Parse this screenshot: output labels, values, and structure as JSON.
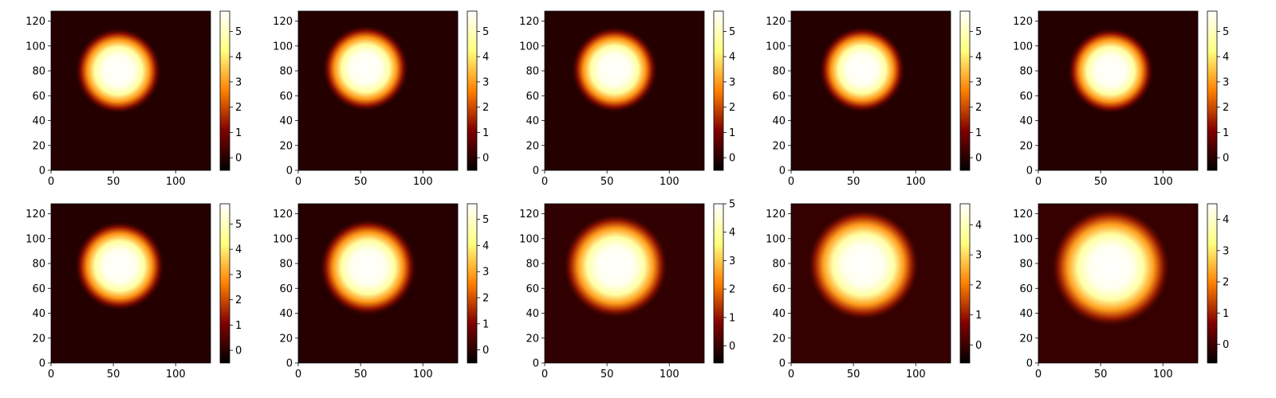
{
  "chart_data": [
    {
      "type": "heatmap",
      "colormap": "afmhot",
      "xlim": [
        0,
        128
      ],
      "ylim": [
        0,
        128
      ],
      "x_ticks": [
        "0",
        "50",
        "100"
      ],
      "y_ticks": [
        "0",
        "20",
        "40",
        "60",
        "80",
        "100",
        "120"
      ],
      "peak_center": [
        54,
        80
      ],
      "peak_radius": 24,
      "peak_value": 5.8,
      "colorbar": {
        "min": -0.5,
        "max": 5.8,
        "ticks": [
          "0",
          "1",
          "2",
          "3",
          "4",
          "5"
        ]
      }
    },
    {
      "type": "heatmap",
      "colormap": "afmhot",
      "xlim": [
        0,
        128
      ],
      "ylim": [
        0,
        128
      ],
      "x_ticks": [
        "0",
        "50",
        "100"
      ],
      "y_ticks": [
        "0",
        "20",
        "40",
        "60",
        "80",
        "100",
        "120"
      ],
      "peak_center": [
        54,
        82
      ],
      "peak_radius": 24,
      "peak_value": 5.8,
      "colorbar": {
        "min": -0.5,
        "max": 5.8,
        "ticks": [
          "0",
          "1",
          "2",
          "3",
          "4",
          "5"
        ]
      }
    },
    {
      "type": "heatmap",
      "colormap": "afmhot",
      "xlim": [
        0,
        128
      ],
      "ylim": [
        0,
        128
      ],
      "x_ticks": [
        "0",
        "50",
        "100"
      ],
      "y_ticks": [
        "0",
        "20",
        "40",
        "60",
        "80",
        "100",
        "120"
      ],
      "peak_center": [
        56,
        81
      ],
      "peak_radius": 24,
      "peak_value": 5.8,
      "colorbar": {
        "min": -0.5,
        "max": 5.8,
        "ticks": [
          "0",
          "1",
          "2",
          "3",
          "4",
          "5"
        ]
      }
    },
    {
      "type": "heatmap",
      "colormap": "afmhot",
      "xlim": [
        0,
        128
      ],
      "ylim": [
        0,
        128
      ],
      "x_ticks": [
        "0",
        "50",
        "100"
      ],
      "y_ticks": [
        "0",
        "20",
        "40",
        "60",
        "80",
        "100",
        "120"
      ],
      "peak_center": [
        57,
        81
      ],
      "peak_radius": 24,
      "peak_value": 5.8,
      "colorbar": {
        "min": -0.5,
        "max": 5.8,
        "ticks": [
          "0",
          "1",
          "2",
          "3",
          "4",
          "5"
        ]
      }
    },
    {
      "type": "heatmap",
      "colormap": "afmhot",
      "xlim": [
        0,
        128
      ],
      "ylim": [
        0,
        128
      ],
      "x_ticks": [
        "0",
        "50",
        "100"
      ],
      "y_ticks": [
        "0",
        "20",
        "40",
        "60",
        "80",
        "100",
        "120"
      ],
      "peak_center": [
        58,
        80
      ],
      "peak_radius": 24,
      "peak_value": 5.8,
      "colorbar": {
        "min": -0.5,
        "max": 5.8,
        "ticks": [
          "0",
          "1",
          "2",
          "3",
          "4",
          "5"
        ]
      }
    },
    {
      "type": "heatmap",
      "colormap": "afmhot",
      "xlim": [
        0,
        128
      ],
      "ylim": [
        0,
        128
      ],
      "x_ticks": [
        "0",
        "50",
        "100"
      ],
      "y_ticks": [
        "0",
        "20",
        "40",
        "60",
        "80",
        "100",
        "120"
      ],
      "peak_center": [
        55,
        78
      ],
      "peak_radius": 25,
      "peak_value": 5.8,
      "colorbar": {
        "min": -0.5,
        "max": 5.8,
        "ticks": [
          "0",
          "1",
          "2",
          "3",
          "4",
          "5"
        ]
      }
    },
    {
      "type": "heatmap",
      "colormap": "afmhot",
      "xlim": [
        0,
        128
      ],
      "ylim": [
        0,
        128
      ],
      "x_ticks": [
        "0",
        "50",
        "100"
      ],
      "y_ticks": [
        "0",
        "20",
        "40",
        "60",
        "80",
        "100",
        "120"
      ],
      "peak_center": [
        56,
        77
      ],
      "peak_radius": 27,
      "peak_value": 5.6,
      "colorbar": {
        "min": -0.5,
        "max": 5.6,
        "ticks": [
          "0",
          "1",
          "2",
          "3",
          "4",
          "5"
        ]
      }
    },
    {
      "type": "heatmap",
      "colormap": "afmhot",
      "xlim": [
        0,
        128
      ],
      "ylim": [
        0,
        128
      ],
      "x_ticks": [
        "0",
        "50",
        "100"
      ],
      "y_ticks": [
        "0",
        "20",
        "40",
        "60",
        "80",
        "100",
        "120"
      ],
      "peak_center": [
        57,
        78
      ],
      "peak_radius": 29,
      "peak_value": 5.0,
      "colorbar": {
        "min": -0.6,
        "max": 5.0,
        "ticks": [
          "0",
          "1",
          "2",
          "3",
          "4",
          "5"
        ]
      }
    },
    {
      "type": "heatmap",
      "colormap": "afmhot",
      "xlim": [
        0,
        128
      ],
      "ylim": [
        0,
        128
      ],
      "x_ticks": [
        "0",
        "50",
        "100"
      ],
      "y_ticks": [
        "0",
        "20",
        "40",
        "60",
        "80",
        "100",
        "120"
      ],
      "peak_center": [
        58,
        79
      ],
      "peak_radius": 31,
      "peak_value": 4.7,
      "colorbar": {
        "min": -0.6,
        "max": 4.7,
        "ticks": [
          "0",
          "1",
          "2",
          "3",
          "4"
        ]
      }
    },
    {
      "type": "heatmap",
      "colormap": "afmhot",
      "xlim": [
        0,
        128
      ],
      "ylim": [
        0,
        128
      ],
      "x_ticks": [
        "0",
        "50",
        "100"
      ],
      "y_ticks": [
        "0",
        "20",
        "40",
        "60",
        "80",
        "100",
        "120"
      ],
      "peak_center": [
        58,
        77
      ],
      "peak_radius": 33,
      "peak_value": 4.5,
      "colorbar": {
        "min": -0.6,
        "max": 4.5,
        "ticks": [
          "0",
          "1",
          "2",
          "3",
          "4"
        ]
      }
    }
  ]
}
